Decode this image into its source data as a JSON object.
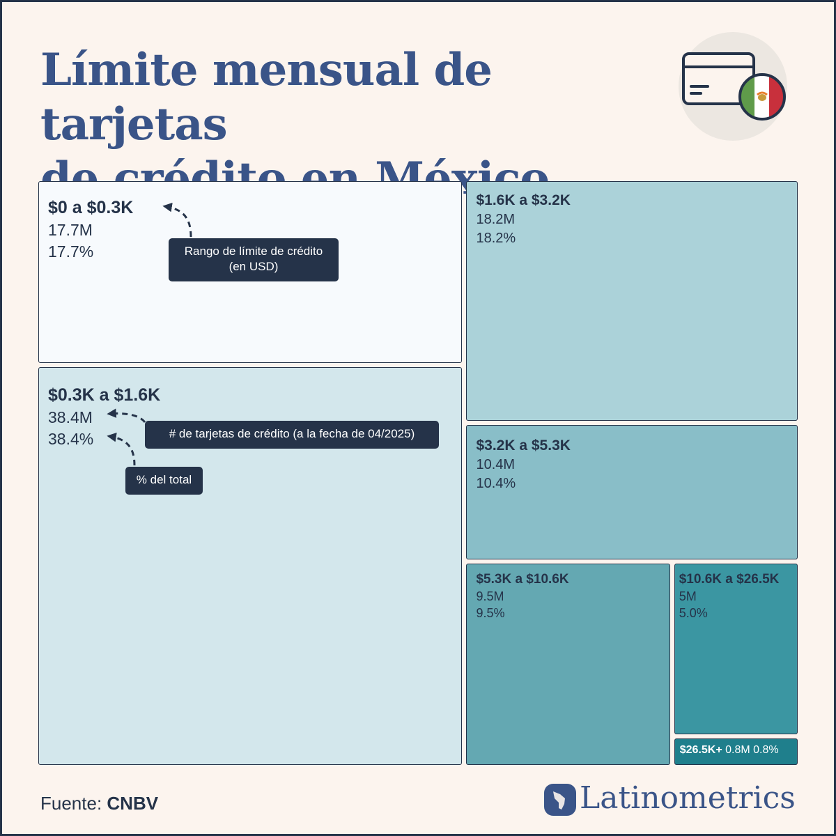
{
  "title_lines": [
    "Límite mensual de tarjetas",
    "de crédito en México"
  ],
  "chart_data": {
    "type": "treemap",
    "title": "Límite mensual de tarjetas de crédito en México",
    "items": [
      {
        "range": "$0 a $0.3K",
        "count": "17.7M",
        "share": "17.7%",
        "value": 17.7
      },
      {
        "range": "$0.3K a $1.6K",
        "count": "38.4M",
        "share": "38.4%",
        "value": 38.4
      },
      {
        "range": "$1.6K a $3.2K",
        "count": "18.2M",
        "share": "18.2%",
        "value": 18.2
      },
      {
        "range": "$3.2K a $5.3K",
        "count": "10.4M",
        "share": "10.4%",
        "value": 10.4
      },
      {
        "range": "$5.3K a $10.6K",
        "count": "9.5M",
        "share": "9.5%",
        "value": 9.5
      },
      {
        "range": "$10.6K a $26.5K",
        "count": "5M",
        "share": "5.0%",
        "value": 5.0
      },
      {
        "range": "$26.5K+",
        "count": "0.8M",
        "share": "0.8%",
        "value": 0.8
      }
    ],
    "colors": [
      "#f7fafd",
      "#d3e7ec",
      "#abd2d9",
      "#89bec8",
      "#64a8b2",
      "#3b96a2",
      "#1f7f8c"
    ]
  },
  "callouts": {
    "range": [
      "Rango de límite de crédito",
      "(en USD)"
    ],
    "count": "# de tarjetas de crédito (a la fecha de 04/2025)",
    "share": "% del total"
  },
  "source": {
    "label": "Fuente:",
    "value": "CNBV"
  },
  "brand": "Latinometrics",
  "icons": [
    "credit-card-icon",
    "mexico-flag-icon",
    "latinometrics-logo-icon"
  ],
  "colors": {
    "accent": "#3a5488",
    "dark": "#253349",
    "background": "#fcf4ee"
  }
}
